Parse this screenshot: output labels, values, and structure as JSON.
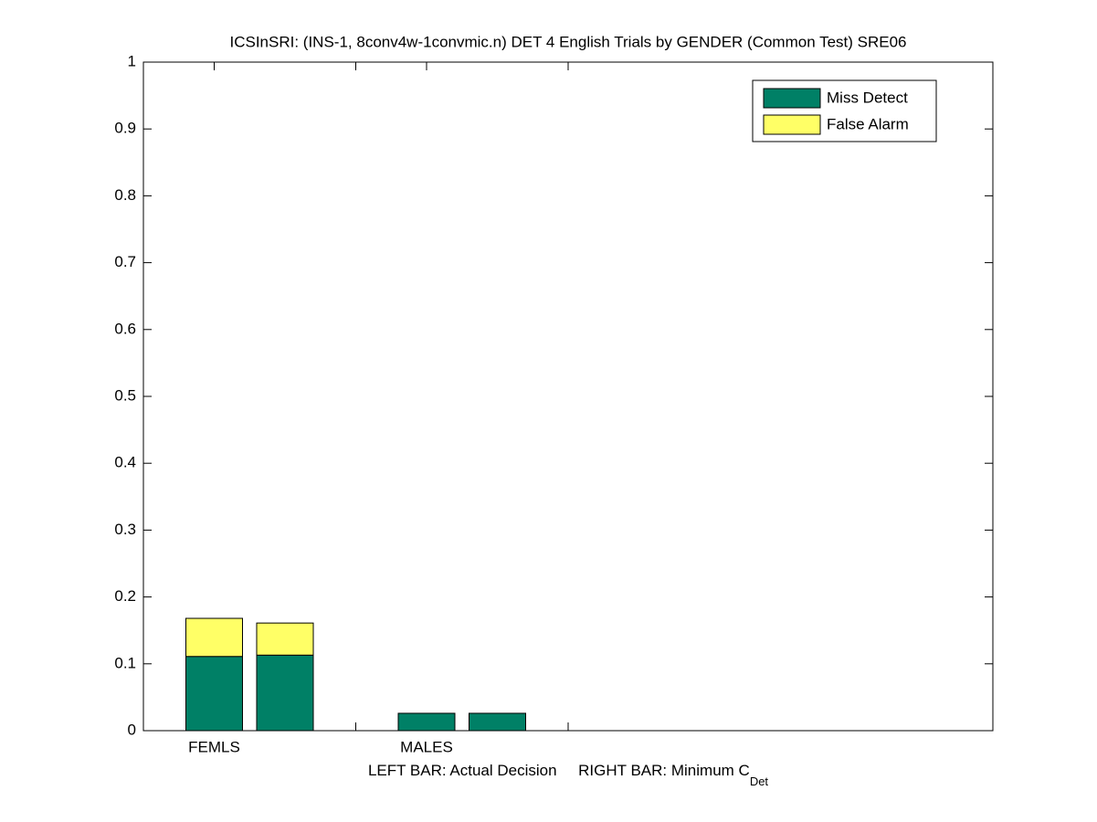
{
  "chart_data": {
    "type": "stacked-bar",
    "title": "ICSInSRI: (INS-1, 8conv4w-1convmic.n) DET 4 English Trials by GENDER (Common Test) SRE06",
    "xlabel": "LEFT BAR: Actual Decision     RIGHT BAR: Minimum C",
    "xlabel_subscript": "Det",
    "x": [
      1,
      2,
      4,
      5
    ],
    "xlim": [
      0,
      12
    ],
    "xticks": [
      {
        "value": 1,
        "label": "FEMLS"
      },
      {
        "value": 3,
        "label": null
      },
      {
        "value": 4,
        "label": "MALES"
      },
      {
        "value": 6,
        "label": null
      }
    ],
    "ylim": [
      0,
      1
    ],
    "yticks": [
      0,
      0.1,
      0.2,
      0.3,
      0.4,
      0.5,
      0.6,
      0.7,
      0.8,
      0.9,
      1
    ],
    "series": [
      {
        "name": "Miss Detect",
        "color": "#008066",
        "values": [
          0.111,
          0.113,
          0.026,
          0.026
        ]
      },
      {
        "name": "False Alarm",
        "color": "#ffff66",
        "values": [
          0.057,
          0.048,
          0,
          0
        ]
      }
    ],
    "legend": "upper-right"
  }
}
